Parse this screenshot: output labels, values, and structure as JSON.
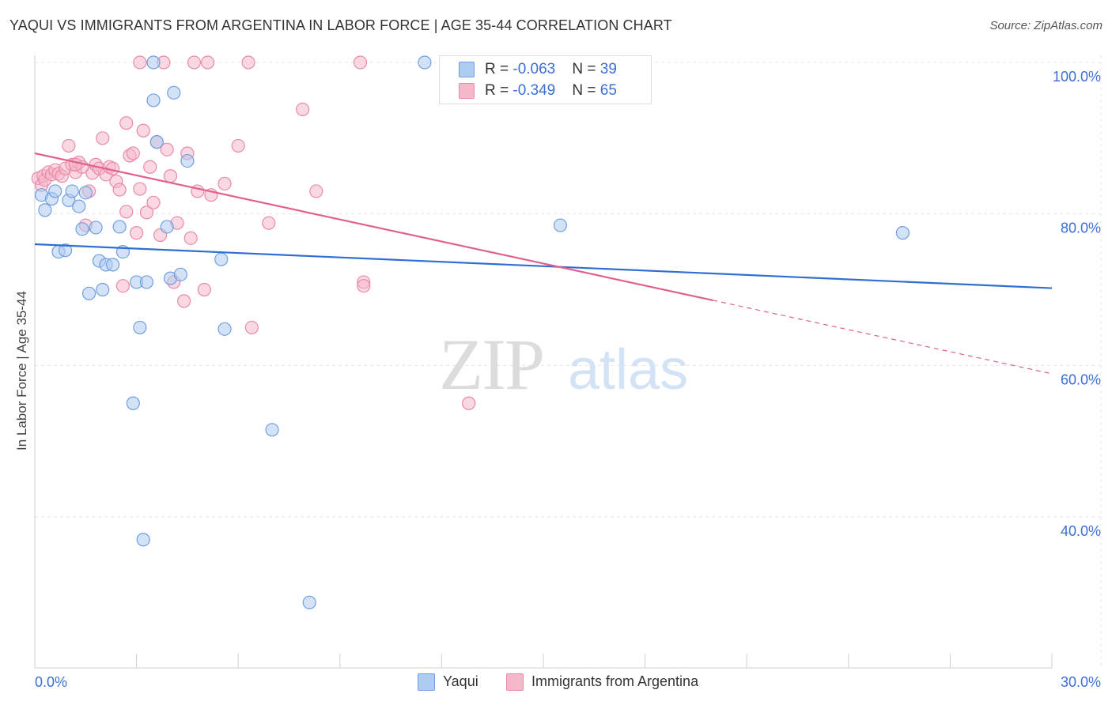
{
  "title": "YAQUI VS IMMIGRANTS FROM ARGENTINA IN LABOR FORCE | AGE 35-44 CORRELATION CHART",
  "source": "Source: ZipAtlas.com",
  "watermark": {
    "zip": "ZIP",
    "atlas": "atlas"
  },
  "legend_top": {
    "rows": [
      {
        "r_label": "R = ",
        "r_value": "-0.063",
        "n_label": "N = ",
        "n_value": "39"
      },
      {
        "r_label": "R = ",
        "r_value": "-0.349",
        "n_label": "N = ",
        "n_value": "65"
      }
    ]
  },
  "legend_bottom": {
    "items": [
      "Yaqui",
      "Immigrants from Argentina"
    ]
  },
  "colors": {
    "blue_fill": "#aecbf0",
    "blue_stroke": "#6f9fe0",
    "blue_line": "#2f6fd0",
    "pink_fill": "#f5b8cb",
    "pink_stroke": "#e88aa8",
    "pink_line": "#e0608e",
    "axis_tick_label": "#3b6fd4",
    "grid": "#e6e6e6"
  },
  "chart_data": {
    "type": "scatter",
    "title": "YAQUI VS IMMIGRANTS FROM ARGENTINA IN LABOR FORCE | AGE 35-44 CORRELATION CHART",
    "xlabel": "",
    "ylabel": "In Labor Force | Age 35-44",
    "xlim": [
      0,
      30
    ],
    "ylim": [
      20,
      102
    ],
    "x_tick_labels": [
      "0.0%",
      "30.0%"
    ],
    "y_ticks": [
      40,
      60,
      80,
      100
    ],
    "y_tick_labels": [
      "40.0%",
      "60.0%",
      "80.0%",
      "100.0%"
    ],
    "grid": true,
    "legend_position": "top-center",
    "series": [
      {
        "name": "Yaqui",
        "points": [
          [
            0.2,
            82.5
          ],
          [
            0.3,
            80.5
          ],
          [
            0.5,
            82
          ],
          [
            0.6,
            83
          ],
          [
            0.7,
            75
          ],
          [
            0.9,
            75.2
          ],
          [
            1.0,
            81.8
          ],
          [
            1.1,
            83
          ],
          [
            1.3,
            81
          ],
          [
            1.4,
            78
          ],
          [
            1.5,
            82.8
          ],
          [
            1.6,
            69.5
          ],
          [
            1.8,
            78.2
          ],
          [
            1.9,
            73.8
          ],
          [
            2.0,
            70
          ],
          [
            2.1,
            73.3
          ],
          [
            2.3,
            73.3
          ],
          [
            2.5,
            78.3
          ],
          [
            2.6,
            75
          ],
          [
            2.9,
            55
          ],
          [
            3.0,
            71
          ],
          [
            3.1,
            65
          ],
          [
            3.2,
            37
          ],
          [
            3.3,
            71
          ],
          [
            3.5,
            100
          ],
          [
            3.5,
            95
          ],
          [
            3.6,
            89.5
          ],
          [
            3.9,
            78.3
          ],
          [
            4.0,
            71.5
          ],
          [
            4.3,
            72
          ],
          [
            4.5,
            87
          ],
          [
            5.5,
            74
          ],
          [
            5.6,
            64.8
          ],
          [
            7.0,
            51.5
          ],
          [
            8.1,
            28.7
          ],
          [
            11.5,
            100
          ],
          [
            15.5,
            78.5
          ],
          [
            25.6,
            77.5
          ],
          [
            4.1,
            96
          ]
        ]
      },
      {
        "name": "Immigrants from Argentina",
        "points": [
          [
            0.1,
            84.7
          ],
          [
            0.2,
            83.8
          ],
          [
            0.25,
            85
          ],
          [
            0.3,
            84.5
          ],
          [
            0.4,
            85.5
          ],
          [
            0.5,
            85.2
          ],
          [
            0.6,
            85.8
          ],
          [
            0.7,
            85.3
          ],
          [
            0.8,
            85
          ],
          [
            0.9,
            86
          ],
          [
            1.0,
            89
          ],
          [
            1.1,
            86.5
          ],
          [
            1.2,
            85.5
          ],
          [
            1.3,
            86.8
          ],
          [
            1.4,
            86.2
          ],
          [
            1.5,
            78.5
          ],
          [
            1.6,
            83
          ],
          [
            1.7,
            85.4
          ],
          [
            1.8,
            86.5
          ],
          [
            1.9,
            86
          ],
          [
            2.0,
            90
          ],
          [
            2.1,
            85.2
          ],
          [
            2.2,
            86.2
          ],
          [
            2.3,
            86
          ],
          [
            2.4,
            84.3
          ],
          [
            2.5,
            83.2
          ],
          [
            2.6,
            70.5
          ],
          [
            2.7,
            92
          ],
          [
            2.7,
            80.3
          ],
          [
            2.8,
            87.7
          ],
          [
            2.9,
            88
          ],
          [
            3.0,
            77.5
          ],
          [
            3.1,
            83.3
          ],
          [
            3.2,
            91
          ],
          [
            3.3,
            80.2
          ],
          [
            3.4,
            86.2
          ],
          [
            3.5,
            81.5
          ],
          [
            3.6,
            89.5
          ],
          [
            3.7,
            77.2
          ],
          [
            3.9,
            88.5
          ],
          [
            4.0,
            85
          ],
          [
            4.1,
            71
          ],
          [
            4.2,
            78.8
          ],
          [
            4.4,
            68.5
          ],
          [
            4.5,
            88
          ],
          [
            4.6,
            76.8
          ],
          [
            4.8,
            83
          ],
          [
            5.0,
            70
          ],
          [
            5.2,
            82.5
          ],
          [
            5.6,
            84
          ],
          [
            6.0,
            89
          ],
          [
            6.4,
            65
          ],
          [
            6.9,
            78.8
          ],
          [
            7.9,
            93.8
          ],
          [
            8.3,
            83
          ],
          [
            9.7,
            71
          ],
          [
            9.7,
            70.5
          ],
          [
            12.8,
            55
          ],
          [
            3.1,
            100
          ],
          [
            3.8,
            100
          ],
          [
            4.7,
            100
          ],
          [
            5.1,
            100
          ],
          [
            6.3,
            100
          ],
          [
            9.6,
            100
          ],
          [
            1.2,
            86.5
          ]
        ]
      }
    ],
    "trendlines": [
      {
        "series": "Yaqui",
        "x_start": 0,
        "y_start": 76,
        "x_end": 30,
        "y_end": 70.2,
        "style": "solid"
      },
      {
        "series": "Immigrants from Argentina",
        "x_start": 0,
        "y_start": 88,
        "x_end": 20,
        "y_end": 68.6,
        "style": "solid",
        "dashed_to_x": 30,
        "dashed_to_y": 58.9
      }
    ]
  }
}
